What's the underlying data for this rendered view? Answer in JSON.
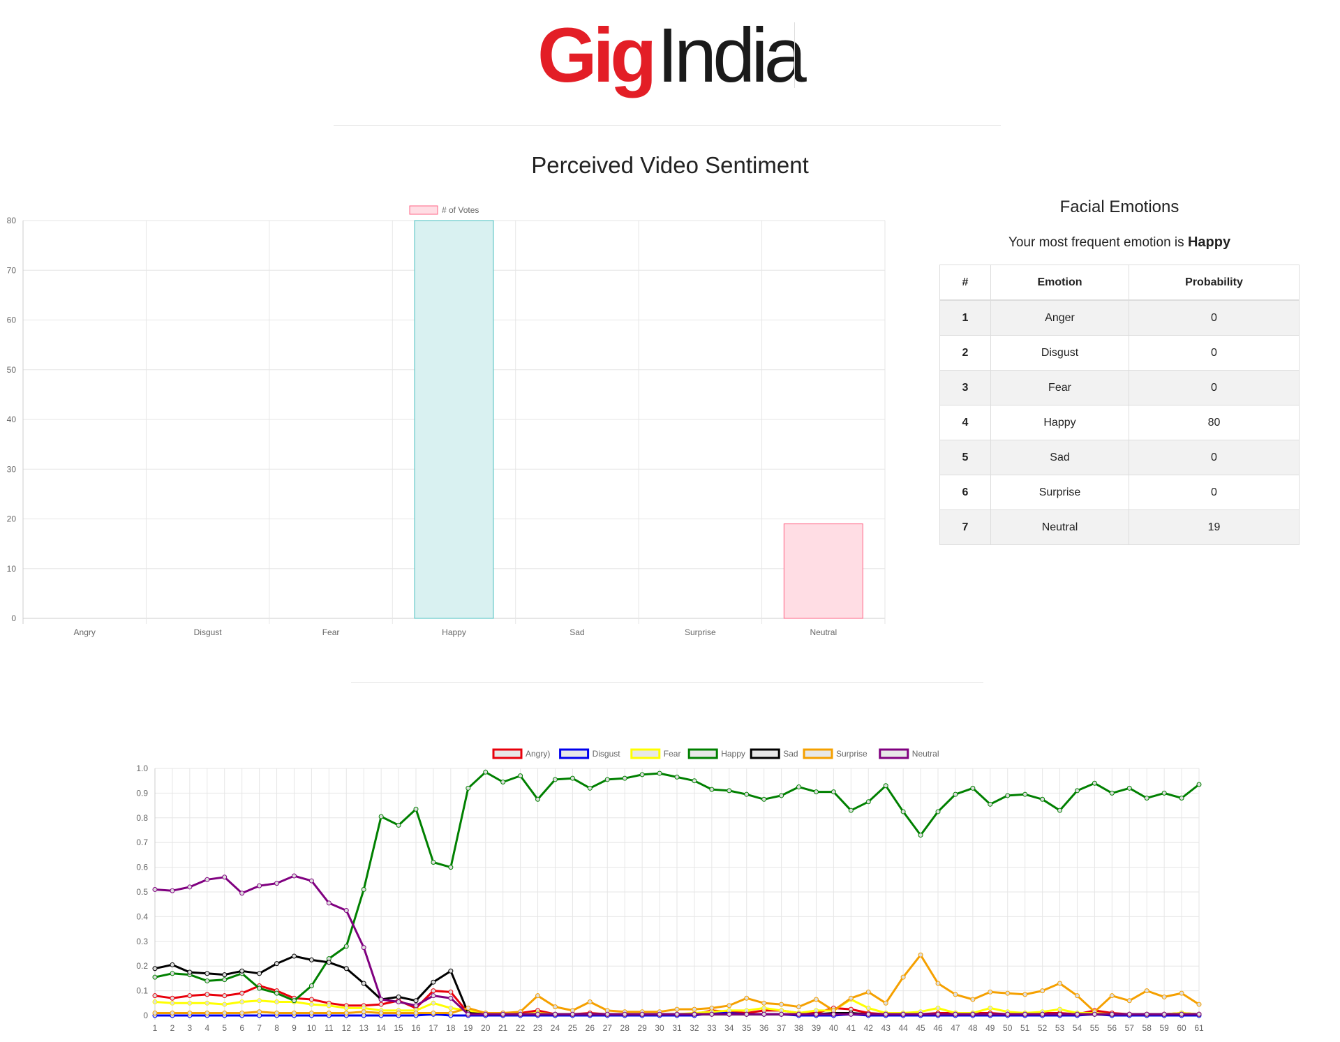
{
  "brand": {
    "gig": "Gig",
    "india": "India"
  },
  "page_title": "Perceived Video Sentiment",
  "facial_emotions": {
    "title": "Facial Emotions",
    "subtitle_prefix": "Your most frequent emotion is",
    "subtitle_emotion": "Happy",
    "columns": [
      "#",
      "Emotion",
      "Probability"
    ],
    "rows": [
      {
        "n": "1",
        "emotion": "Anger",
        "prob": "0"
      },
      {
        "n": "2",
        "emotion": "Disgust",
        "prob": "0"
      },
      {
        "n": "3",
        "emotion": "Fear",
        "prob": "0"
      },
      {
        "n": "4",
        "emotion": "Happy",
        "prob": "80"
      },
      {
        "n": "5",
        "emotion": "Sad",
        "prob": "0"
      },
      {
        "n": "6",
        "emotion": "Surprise",
        "prob": "0"
      },
      {
        "n": "7",
        "emotion": "Neutral",
        "prob": "19"
      }
    ]
  },
  "chart_data": [
    {
      "type": "bar",
      "categories": [
        "Angry",
        "Disgust",
        "Fear",
        "Happy",
        "Sad",
        "Surprise",
        "Neutral"
      ],
      "series": [
        {
          "name": "# of Votes",
          "values": [
            0,
            0,
            0,
            80,
            0,
            0,
            19
          ]
        }
      ],
      "legend": "top",
      "ylim": [
        0,
        80
      ],
      "yticks": [
        0,
        10,
        20,
        30,
        40,
        50,
        60,
        70,
        80
      ],
      "grid": true,
      "colors": {
        "Happy": {
          "fill": "#d9f1f1",
          "stroke": "#4bc0c0"
        },
        "Neutral": {
          "fill": "#ffdde4",
          "stroke": "#ff6384"
        },
        "legend_swatch": {
          "fill": "#ffdde4",
          "stroke": "#ff6384"
        }
      }
    },
    {
      "type": "line",
      "x": [
        1,
        2,
        3,
        4,
        5,
        6,
        7,
        8,
        9,
        10,
        11,
        12,
        13,
        14,
        15,
        16,
        17,
        18,
        19,
        20,
        21,
        22,
        23,
        24,
        25,
        26,
        27,
        28,
        29,
        30,
        31,
        32,
        33,
        34,
        35,
        36,
        37,
        38,
        39,
        40,
        41,
        42,
        43,
        44,
        45,
        46,
        47,
        48,
        49,
        50,
        51,
        52,
        53,
        54,
        55,
        56,
        57,
        58,
        59,
        60,
        61
      ],
      "ylim": [
        0,
        1.0
      ],
      "yticks": [
        "0",
        "0.1",
        "0.2",
        "0.3",
        "0.4",
        "0.5",
        "0.6",
        "0.7",
        "0.8",
        "0.9",
        "1.0"
      ],
      "legend": "top",
      "grid": true,
      "series": [
        {
          "name": "Angry)",
          "color": "#e8000b",
          "values": [
            0.08,
            0.07,
            0.08,
            0.085,
            0.08,
            0.09,
            0.12,
            0.1,
            0.07,
            0.065,
            0.05,
            0.04,
            0.04,
            0.045,
            0.06,
            0.03,
            0.1,
            0.095,
            0.01,
            0.005,
            0.01,
            0.01,
            0.02,
            0.005,
            0.005,
            0.01,
            0.005,
            0.005,
            0.005,
            0.005,
            0.005,
            0.005,
            0.02,
            0.015,
            0.01,
            0.02,
            0.02,
            0.01,
            0.01,
            0.03,
            0.025,
            0.01,
            0.005,
            0.005,
            0.005,
            0.01,
            0.01,
            0.01,
            0.01,
            0.005,
            0.005,
            0.01,
            0.01,
            0.005,
            0.02,
            0.01,
            0.005,
            0.005,
            0.005,
            0.01,
            0.005
          ]
        },
        {
          "name": "Disgust",
          "color": "#0000ee",
          "values": [
            0,
            0,
            0,
            0,
            0,
            0,
            0,
            0,
            0,
            0,
            0,
            0,
            0,
            0,
            0,
            0,
            0.005,
            0,
            0,
            0,
            0,
            0,
            0,
            0,
            0,
            0,
            0,
            0,
            0,
            0,
            0,
            0,
            0.01,
            0.01,
            0.005,
            0.005,
            0.005,
            0,
            0,
            0,
            0.005,
            0,
            0,
            0,
            0,
            0,
            0,
            0,
            0,
            0,
            0,
            0,
            0,
            0,
            0.005,
            0,
            0,
            0,
            0,
            0,
            0
          ]
        },
        {
          "name": "Fear",
          "color": "#ffff00",
          "values": [
            0.055,
            0.05,
            0.05,
            0.05,
            0.045,
            0.055,
            0.06,
            0.055,
            0.055,
            0.045,
            0.04,
            0.03,
            0.03,
            0.02,
            0.02,
            0.02,
            0.05,
            0.03,
            0.02,
            0.01,
            0.005,
            0.005,
            0.01,
            0.005,
            0.005,
            0.005,
            0.005,
            0.005,
            0.005,
            0.005,
            0.005,
            0.01,
            0.015,
            0.02,
            0.02,
            0.03,
            0.02,
            0.01,
            0.02,
            0.02,
            0.065,
            0.03,
            0.01,
            0.01,
            0.015,
            0.03,
            0.01,
            0.01,
            0.03,
            0.015,
            0.01,
            0.015,
            0.025,
            0.01,
            0.01,
            0.005,
            0.005,
            0.005,
            0.005,
            0.01,
            0.005
          ]
        },
        {
          "name": "Happy",
          "color": "#008000",
          "values": [
            0.155,
            0.17,
            0.165,
            0.14,
            0.145,
            0.17,
            0.11,
            0.09,
            0.06,
            0.12,
            0.23,
            0.28,
            0.51,
            0.805,
            0.77,
            0.835,
            0.62,
            0.6,
            0.92,
            0.985,
            0.945,
            0.97,
            0.875,
            0.955,
            0.96,
            0.92,
            0.955,
            0.96,
            0.975,
            0.98,
            0.965,
            0.95,
            0.915,
            0.91,
            0.895,
            0.875,
            0.89,
            0.925,
            0.905,
            0.905,
            0.83,
            0.865,
            0.93,
            0.825,
            0.73,
            0.825,
            0.895,
            0.92,
            0.855,
            0.89,
            0.895,
            0.875,
            0.83,
            0.91,
            0.94,
            0.9,
            0.92,
            0.88,
            0.9,
            0.88,
            0.935
          ]
        },
        {
          "name": "Sad",
          "color": "#000000",
          "values": [
            0.19,
            0.205,
            0.175,
            0.17,
            0.165,
            0.18,
            0.17,
            0.21,
            0.24,
            0.225,
            0.215,
            0.19,
            0.13,
            0.065,
            0.075,
            0.06,
            0.135,
            0.18,
            0.01,
            0.005,
            0.005,
            0.005,
            0.005,
            0.005,
            0.005,
            0.005,
            0.005,
            0.005,
            0.005,
            0.005,
            0.005,
            0.005,
            0.005,
            0.005,
            0.005,
            0.005,
            0.005,
            0.005,
            0.005,
            0.01,
            0.01,
            0.005,
            0.005,
            0.005,
            0.005,
            0.005,
            0.005,
            0.005,
            0.005,
            0.005,
            0.005,
            0.005,
            0.005,
            0.005,
            0.005,
            0.005,
            0.005,
            0.005,
            0.005,
            0.005,
            0.005
          ]
        },
        {
          "name": "Surprise",
          "color": "#f5a000",
          "values": [
            0.01,
            0.01,
            0.01,
            0.01,
            0.01,
            0.01,
            0.015,
            0.01,
            0.01,
            0.01,
            0.01,
            0.01,
            0.015,
            0.01,
            0.01,
            0.01,
            0.01,
            0.01,
            0.03,
            0.01,
            0.01,
            0.015,
            0.08,
            0.035,
            0.02,
            0.055,
            0.02,
            0.015,
            0.015,
            0.015,
            0.025,
            0.025,
            0.03,
            0.04,
            0.07,
            0.05,
            0.045,
            0.035,
            0.065,
            0.02,
            0.07,
            0.095,
            0.05,
            0.155,
            0.245,
            0.13,
            0.085,
            0.065,
            0.095,
            0.09,
            0.085,
            0.1,
            0.13,
            0.08,
            0.015,
            0.08,
            0.06,
            0.1,
            0.075,
            0.09,
            0.045
          ]
        },
        {
          "name": "Neutral",
          "color": "#800080",
          "values": [
            0.51,
            0.505,
            0.52,
            0.55,
            0.56,
            0.495,
            0.525,
            0.535,
            0.565,
            0.545,
            0.455,
            0.425,
            0.275,
            0.065,
            0.055,
            0.04,
            0.08,
            0.07,
            0.005,
            0.005,
            0.005,
            0.005,
            0.005,
            0.005,
            0.005,
            0.005,
            0.005,
            0.005,
            0.005,
            0.005,
            0.005,
            0.005,
            0.005,
            0.005,
            0.005,
            0.005,
            0.005,
            0.005,
            0.005,
            0.005,
            0.005,
            0.005,
            0.005,
            0.005,
            0.005,
            0.005,
            0.005,
            0.005,
            0.005,
            0.005,
            0.005,
            0.005,
            0.005,
            0.005,
            0.005,
            0.005,
            0.005,
            0.005,
            0.005,
            0.005,
            0.005
          ]
        }
      ]
    }
  ]
}
